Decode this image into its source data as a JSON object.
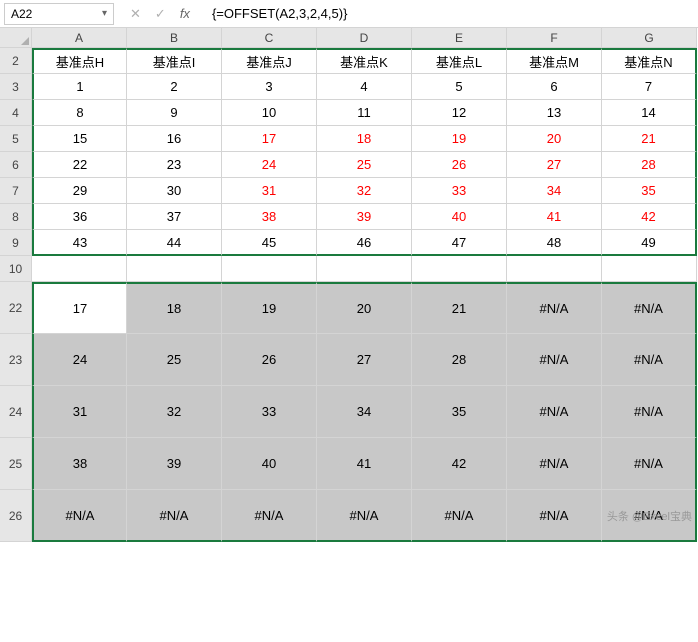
{
  "formula_bar": {
    "cell_ref": "A22",
    "formula": "{=OFFSET(A2,3,2,4,5)}"
  },
  "columns": [
    "A",
    "B",
    "C",
    "D",
    "E",
    "F",
    "G"
  ],
  "row_numbers": [
    2,
    3,
    4,
    5,
    6,
    7,
    8,
    9,
    10,
    22,
    23,
    24,
    25,
    26
  ],
  "headers_row": [
    "基准点H",
    "基准点I",
    "基准点J",
    "基准点K",
    "基准点L",
    "基准点M",
    "基准点N"
  ],
  "data_block": [
    [
      "1",
      "2",
      "3",
      "4",
      "5",
      "6",
      "7"
    ],
    [
      "8",
      "9",
      "10",
      "11",
      "12",
      "13",
      "14"
    ],
    [
      "15",
      "16",
      "17",
      "18",
      "19",
      "20",
      "21"
    ],
    [
      "22",
      "23",
      "24",
      "25",
      "26",
      "27",
      "28"
    ],
    [
      "29",
      "30",
      "31",
      "32",
      "33",
      "34",
      "35"
    ],
    [
      "36",
      "37",
      "38",
      "39",
      "40",
      "41",
      "42"
    ],
    [
      "43",
      "44",
      "45",
      "46",
      "47",
      "48",
      "49"
    ]
  ],
  "red_region": {
    "row_start": 2,
    "row_end": 5,
    "col_start": 2,
    "col_end": 6
  },
  "result_block": [
    [
      "17",
      "18",
      "19",
      "20",
      "21",
      "#N/A",
      "#N/A"
    ],
    [
      "24",
      "25",
      "26",
      "27",
      "28",
      "#N/A",
      "#N/A"
    ],
    [
      "31",
      "32",
      "33",
      "34",
      "35",
      "#N/A",
      "#N/A"
    ],
    [
      "38",
      "39",
      "40",
      "41",
      "42",
      "#N/A",
      "#N/A"
    ],
    [
      "#N/A",
      "#N/A",
      "#N/A",
      "#N/A",
      "#N/A",
      "#N/A",
      "#N/A"
    ]
  ],
  "colors": {
    "red_text": "#ff0000",
    "selection_bg": "#c8c8c8",
    "border_green": "#1a7a3e",
    "header_bg": "#e6e6e6",
    "grid_line": "#d4d4d4"
  },
  "watermark": "头条 @Excel宝典"
}
